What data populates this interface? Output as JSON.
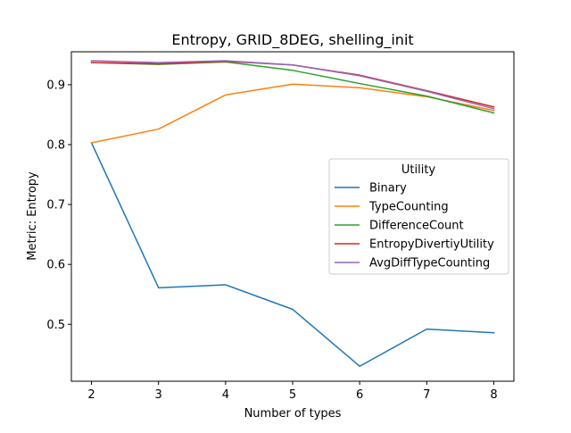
{
  "chart_data": {
    "type": "line",
    "title": "Entropy, GRID_8DEG, shelling_init",
    "xlabel": "Number of types",
    "ylabel": "Metric: Entropy",
    "x": [
      2,
      3,
      4,
      5,
      6,
      7,
      8
    ],
    "xlim": [
      1.7,
      8.3
    ],
    "ylim": [
      0.405,
      0.955
    ],
    "xticks": [
      2,
      3,
      4,
      5,
      6,
      7,
      8
    ],
    "yticks": [
      0.5,
      0.6,
      0.7,
      0.8,
      0.9
    ],
    "ytick_labels": [
      "0.5",
      "0.6",
      "0.7",
      "0.8",
      "0.9"
    ],
    "grid": false,
    "legend": {
      "title": "Utility",
      "placement": "center-right"
    },
    "series": [
      {
        "name": "Binary",
        "color": "#1f77b4",
        "values": [
          0.803,
          0.561,
          0.566,
          0.525,
          0.43,
          0.492,
          0.486
        ]
      },
      {
        "name": "TypeCounting",
        "color": "#ff7f0e",
        "values": [
          0.803,
          0.826,
          0.883,
          0.901,
          0.895,
          0.88,
          0.857
        ]
      },
      {
        "name": "DifferenceCount",
        "color": "#2ca02c",
        "values": [
          0.937,
          0.934,
          0.938,
          0.924,
          0.902,
          0.881,
          0.853
        ]
      },
      {
        "name": "EntropyDivertiyUtility",
        "color": "#d62728",
        "values": [
          0.937,
          0.935,
          0.939,
          0.933,
          0.916,
          0.89,
          0.863
        ]
      },
      {
        "name": "AvgDiffTypeCounting",
        "color": "#9467bd",
        "values": [
          0.94,
          0.937,
          0.94,
          0.933,
          0.915,
          0.889,
          0.86
        ]
      }
    ]
  }
}
